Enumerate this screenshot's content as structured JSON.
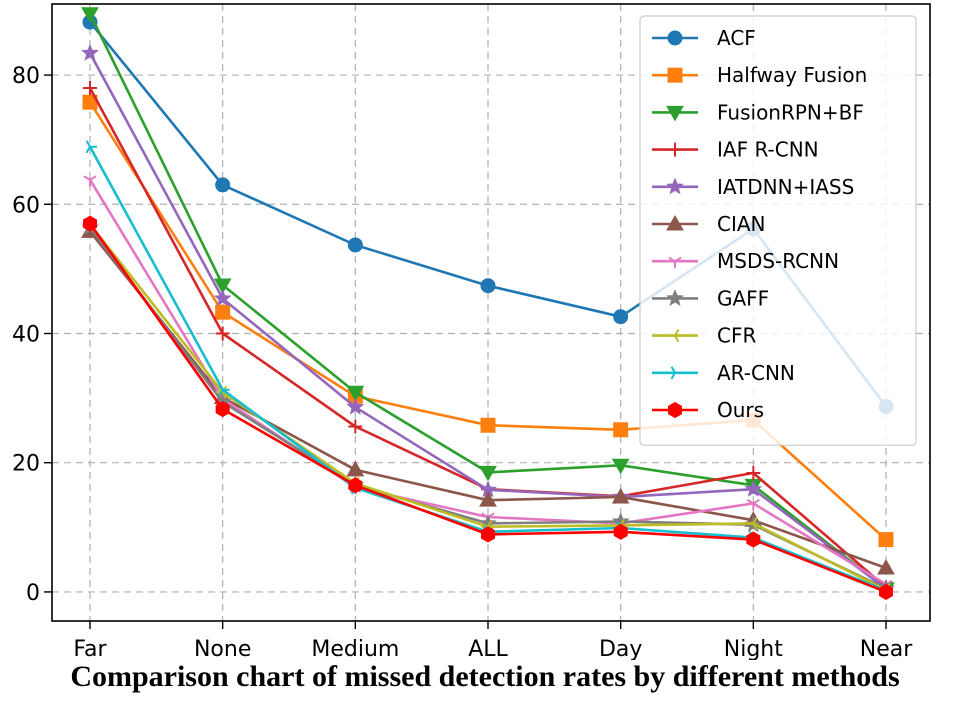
{
  "chart_data": {
    "type": "line",
    "caption": "Comparison chart of missed detection rates by different methods",
    "categories": [
      "Far",
      "None",
      "Medium",
      "ALL",
      "Day",
      "Night",
      "Near"
    ],
    "ylim": [
      -4.5,
      91
    ],
    "yticks": [
      0,
      20,
      40,
      60,
      80
    ],
    "grid": true,
    "legend_position": "top-right",
    "series": [
      {
        "name": "ACF",
        "color": "#1f77b4",
        "marker": "circle",
        "values": [
          88.2,
          63,
          53.7,
          47.4,
          42.6,
          56.2,
          28.7
        ]
      },
      {
        "name": "Halfway Fusion",
        "color": "#ff7f0e",
        "marker": "square",
        "values": [
          75.8,
          43.3,
          30.3,
          25.8,
          25.1,
          26.6,
          8.1
        ]
      },
      {
        "name": "FusionRPN+BF",
        "color": "#2ca02c",
        "marker": "triangle-down",
        "values": [
          89.5,
          47.5,
          30.9,
          18.5,
          19.6,
          16.5,
          0.5
        ]
      },
      {
        "name": "IAF R-CNN",
        "color": "#d62728",
        "marker": "plus",
        "values": [
          78,
          40,
          25.6,
          15.9,
          14.8,
          18.4,
          0.7
        ]
      },
      {
        "name": "IATDNN+IASS",
        "color": "#9467bd",
        "marker": "star",
        "values": [
          83.4,
          45.4,
          28.6,
          15.8,
          14.7,
          15.9,
          0.5
        ]
      },
      {
        "name": "CIAN",
        "color": "#8c564b",
        "marker": "triangle-up",
        "values": [
          55.8,
          30.1,
          18.9,
          14.2,
          14.7,
          11.1,
          3.7
        ]
      },
      {
        "name": "MSDS-RCNN",
        "color": "#e377c2",
        "marker": "tri-down",
        "values": [
          63.8,
          29.9,
          16.2,
          11.6,
          10.6,
          13.7,
          1.2
        ]
      },
      {
        "name": "GAFF",
        "color": "#7f7f7f",
        "marker": "star",
        "values": [
          56.4,
          29.4,
          16.5,
          10.6,
          10.9,
          10.4,
          0.5
        ]
      },
      {
        "name": "CFR",
        "color": "#bcbd22",
        "marker": "tri-left",
        "values": [
          56.9,
          30.9,
          16.8,
          10.1,
          10.3,
          10.6,
          0.3
        ]
      },
      {
        "name": "AR-CNN",
        "color": "#17becf",
        "marker": "tri-right",
        "values": [
          68.9,
          31.3,
          16.1,
          9.3,
          9.9,
          8.4,
          0.2
        ]
      },
      {
        "name": "Ours",
        "color": "#ff0000",
        "marker": "hexagon",
        "values": [
          57,
          28.3,
          16.5,
          8.9,
          9.3,
          8.1,
          0
        ]
      }
    ]
  }
}
